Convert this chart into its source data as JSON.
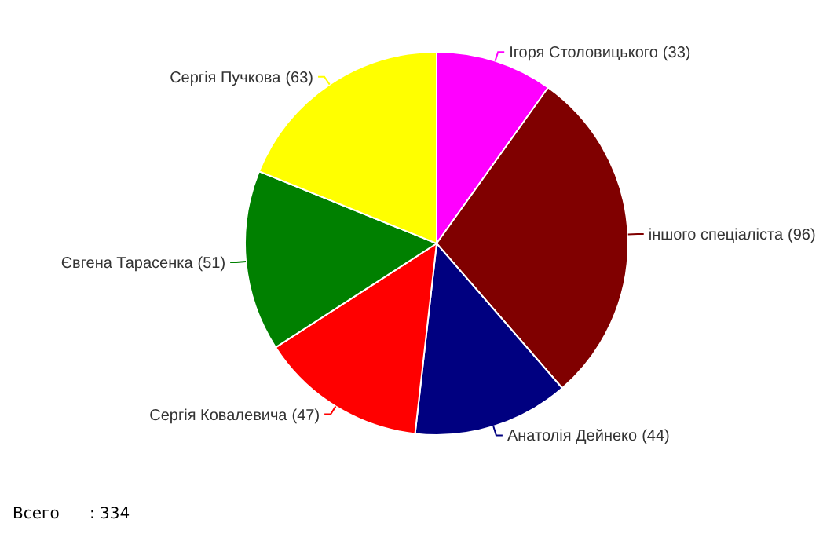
{
  "chart_data": {
    "type": "pie",
    "categories": [
      "Ігоря Столовицького",
      "іншого спеціаліста",
      "Анатолія Дейнеко",
      "Сергія Ковалевича",
      "Євгена Тарасенка",
      "Сергія Пучкова"
    ],
    "values": [
      33,
      96,
      44,
      47,
      51,
      63
    ],
    "colors": [
      "#ff00ff",
      "#800000",
      "#000080",
      "#ff0000",
      "#008000",
      "#ffff00"
    ],
    "value_labels": [
      "(33)",
      "(96)",
      "(44)",
      "(47)",
      "(51)",
      "(63)"
    ],
    "annotations": [
      "Всего      : 334"
    ]
  }
}
